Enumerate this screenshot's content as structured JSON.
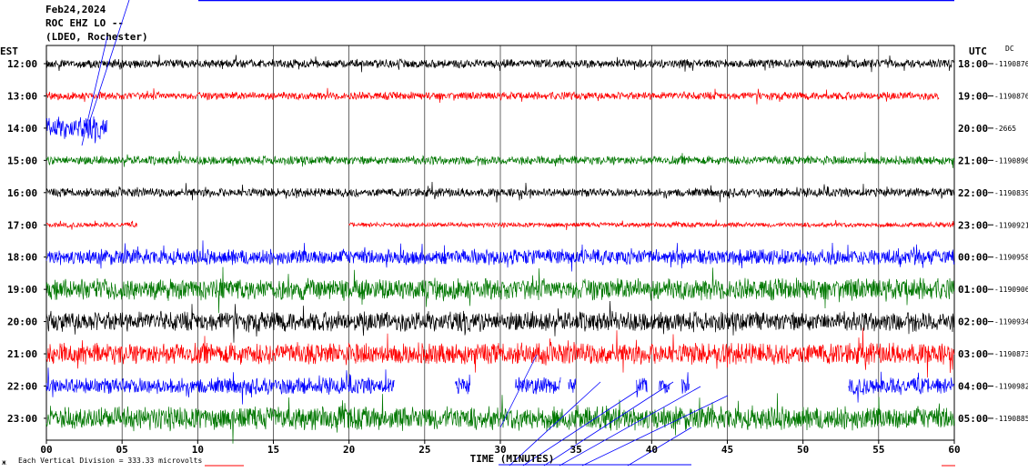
{
  "header": {
    "date": "Feb24,2024",
    "station": "ROC EHZ LO --",
    "network": "(LDEO, Rochester)"
  },
  "labels": {
    "left_zone": "EST",
    "right_zone": "UTC",
    "dc_label": "DC",
    "x_title": "TIME (MINUTES)",
    "footer_note": "Each Vertical Division =   333.33 microvolts"
  },
  "colors": {
    "trace_cycle": [
      "#000000",
      "#ff0000",
      "#0000ff",
      "#007700"
    ],
    "grid": "#000000",
    "marker": "#0000ff"
  },
  "chart_data": {
    "type": "line",
    "title": "Feb24,2024",
    "xlabel": "TIME (MINUTES)",
    "xlim": [
      0,
      60
    ],
    "x_ticks": [
      "00",
      "05",
      "10",
      "15",
      "20",
      "25",
      "30",
      "35",
      "40",
      "45",
      "50",
      "55",
      "60"
    ],
    "rows": [
      {
        "est": "12:00",
        "utc": "18:00",
        "dc": "-1190876",
        "color": "#000000",
        "amp": 0.45,
        "segments": [
          [
            0,
            60
          ]
        ]
      },
      {
        "est": "13:00",
        "utc": "19:00",
        "dc": "-1190876",
        "color": "#ff0000",
        "amp": 0.4,
        "segments": [
          [
            0,
            59
          ]
        ]
      },
      {
        "est": "14:00",
        "utc": "20:00",
        "dc": "-2665",
        "color": "#0000ff",
        "amp": 1.1,
        "segments": [
          [
            0,
            4
          ]
        ]
      },
      {
        "est": "15:00",
        "utc": "21:00",
        "dc": "-1190896",
        "color": "#007700",
        "amp": 0.45,
        "segments": [
          [
            0,
            60
          ]
        ]
      },
      {
        "est": "16:00",
        "utc": "22:00",
        "dc": "-1190839",
        "color": "#000000",
        "amp": 0.45,
        "segments": [
          [
            0,
            60
          ]
        ]
      },
      {
        "est": "17:00",
        "utc": "23:00",
        "dc": "-1190921",
        "color": "#ff0000",
        "amp": 0.25,
        "segments": [
          [
            0,
            6
          ],
          [
            20,
            60
          ]
        ]
      },
      {
        "est": "18:00",
        "utc": "00:00",
        "dc": "-1190958",
        "color": "#0000ff",
        "amp": 0.8,
        "segments": [
          [
            0,
            60
          ]
        ]
      },
      {
        "est": "19:00",
        "utc": "01:00",
        "dc": "-1190906",
        "color": "#007700",
        "amp": 1.1,
        "segments": [
          [
            0,
            60
          ]
        ]
      },
      {
        "est": "20:00",
        "utc": "02:00",
        "dc": "-1190934",
        "color": "#000000",
        "amp": 1.0,
        "segments": [
          [
            0,
            60
          ]
        ]
      },
      {
        "est": "21:00",
        "utc": "03:00",
        "dc": "-1190873",
        "color": "#ff0000",
        "amp": 1.1,
        "segments": [
          [
            0,
            60
          ]
        ]
      },
      {
        "est": "22:00",
        "utc": "04:00",
        "dc": "-1190982",
        "color": "#0000ff",
        "amp": 0.85,
        "segments": [
          [
            0,
            23
          ],
          [
            27,
            28
          ],
          [
            31,
            34
          ],
          [
            34.5,
            35
          ],
          [
            39,
            39.7
          ],
          [
            40.5,
            41.2
          ],
          [
            42,
            42.5
          ],
          [
            53,
            60
          ]
        ]
      },
      {
        "est": "23:00",
        "utc": "05:00",
        "dc": "-1190885",
        "color": "#007700",
        "amp": 1.2,
        "segments": [
          [
            0,
            60
          ]
        ]
      }
    ]
  }
}
